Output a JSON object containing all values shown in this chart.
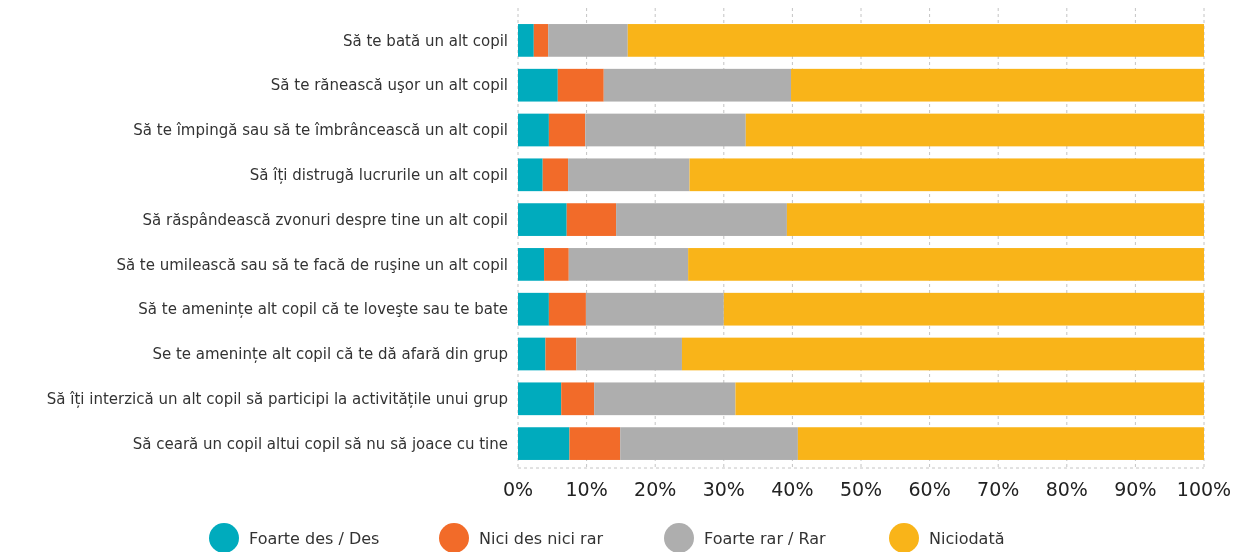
{
  "chart_data": {
    "type": "bar",
    "orientation": "horizontal",
    "stacked": true,
    "legend": "bottom",
    "grid": "x",
    "categories": [
      "Să te bată un alt copil",
      "Să te rănească uşor un alt copil",
      "Să te împingă sau să te îmbrâncească un alt copil",
      "Să îți distrugă lucrurile un alt copil",
      "Să răspândească zvonuri despre tine un alt copil",
      "Să te umilească sau să te facă de ruşine un alt copil",
      "Să te amenințe alt copil că te loveşte sau te bate",
      "Se te amenințe alt copil că te dă afară din grup",
      "Să îți interzică un alt copil să participi la activitățile unui grup",
      "Să ceară un copil altui copil să nu să joace cu tine"
    ],
    "series": [
      {
        "name": "Foarte des / Des",
        "color": "#00abbd",
        "values": [
          2.3,
          5.8,
          4.5,
          3.6,
          7.1,
          3.8,
          4.5,
          4.0,
          6.3,
          7.5
        ]
      },
      {
        "name": "Nici des nici rar",
        "color": "#f26b29",
        "values": [
          2.1,
          6.7,
          5.3,
          3.7,
          7.2,
          3.6,
          5.4,
          4.5,
          4.8,
          7.4
        ]
      },
      {
        "name": "Foarte rar / Rar",
        "color": "#aeaeae",
        "values": [
          11.6,
          27.3,
          23.4,
          17.7,
          24.9,
          17.4,
          20.1,
          15.4,
          20.6,
          25.9
        ]
      },
      {
        "name": "Niciodată",
        "color": "#f9b419",
        "values": [
          84.0,
          60.2,
          66.8,
          75.0,
          60.8,
          75.2,
          70.0,
          76.1,
          68.3,
          59.2
        ]
      }
    ],
    "xlim": [
      0,
      100
    ],
    "xticks": [
      {
        "value": 0,
        "label": "0%"
      },
      {
        "value": 10,
        "label": "10%"
      },
      {
        "value": 20,
        "label": "20%"
      },
      {
        "value": 30,
        "label": "30%"
      },
      {
        "value": 40,
        "label": "40%"
      },
      {
        "value": 50,
        "label": "50%"
      },
      {
        "value": 60,
        "label": "60%"
      },
      {
        "value": 70,
        "label": "70%"
      },
      {
        "value": 80,
        "label": "80%"
      },
      {
        "value": 90,
        "label": "90%"
      },
      {
        "value": 100,
        "label": "100%"
      }
    ]
  }
}
